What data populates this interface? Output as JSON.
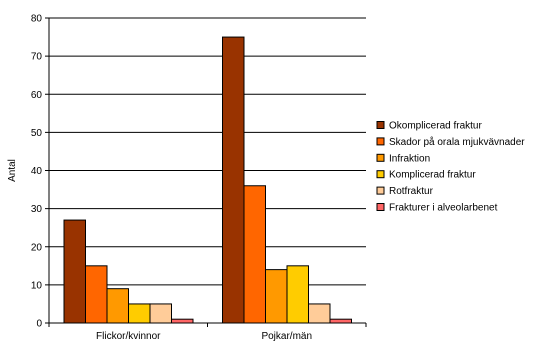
{
  "chart_data": {
    "type": "bar",
    "categories": [
      "Flickor/kvinnor",
      "Pojkar/män"
    ],
    "ylabel": "Antal",
    "xlabel": "",
    "ylim": [
      0,
      80
    ],
    "yticks": [
      0,
      10,
      20,
      30,
      40,
      50,
      60,
      70,
      80
    ],
    "grid": true,
    "legend": "right",
    "series": [
      {
        "name": "Okomplicerad fraktur",
        "color": "#993300",
        "values": [
          27,
          75
        ]
      },
      {
        "name": "Skador på orala mjukvävnader",
        "color": "#FF6600",
        "values": [
          15,
          36
        ]
      },
      {
        "name": "Infraktion",
        "color": "#FF9900",
        "values": [
          9,
          14
        ]
      },
      {
        "name": "Komplicerad fraktur",
        "color": "#FFCC00",
        "values": [
          5,
          15
        ]
      },
      {
        "name": "Rotfraktur",
        "color": "#FFCC99",
        "values": [
          5,
          5
        ]
      },
      {
        "name": "Frakturer i alveolarbenet",
        "color": "#FF6666",
        "values": [
          1,
          1
        ]
      }
    ]
  }
}
